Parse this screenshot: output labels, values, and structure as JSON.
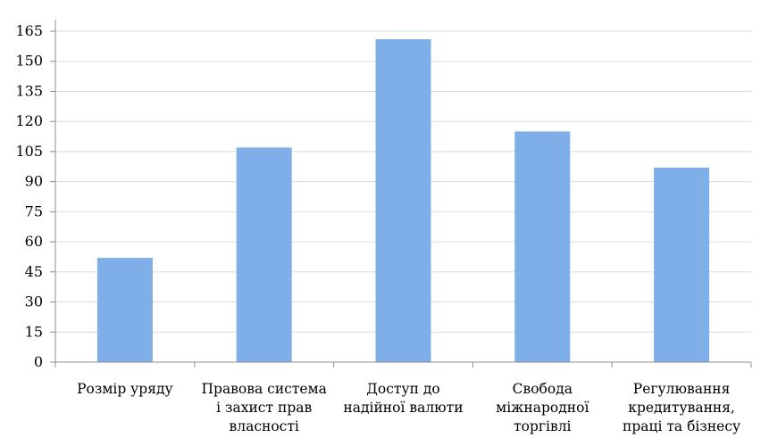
{
  "chart_data": {
    "type": "bar",
    "categories": [
      [
        "Розмір уряду"
      ],
      [
        "Правова система",
        "і захист прав",
        "власності"
      ],
      [
        "Доступ до",
        "надійної валюти"
      ],
      [
        "Свобода",
        "міжнародної",
        "торгівлі"
      ],
      [
        "Регулювання",
        "кредитування,",
        "праці та бізнесу"
      ]
    ],
    "values": [
      52,
      107,
      161,
      115,
      97
    ],
    "ylim": [
      0,
      165
    ],
    "yticks": [
      0,
      15,
      30,
      45,
      60,
      75,
      90,
      105,
      120,
      135,
      150,
      165
    ],
    "grid": true,
    "bar_color": "#7eafe8",
    "grid_color": "#d9d9d9",
    "axis_color": "#8c8c8c"
  }
}
